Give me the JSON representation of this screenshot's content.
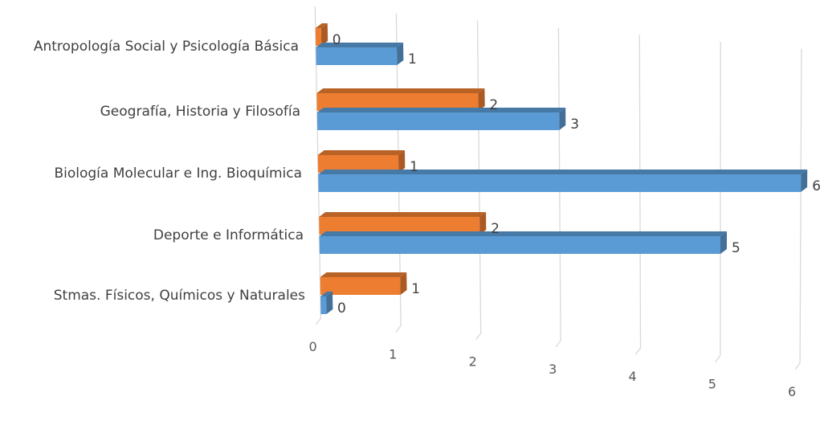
{
  "chart_data": {
    "type": "bar",
    "orientation": "horizontal",
    "style": "3d-perspective",
    "categories": [
      "Antropología Social y Psicología Básica",
      "Geografía, Historia y Filosofía",
      "Biología Molecular e Ing. Bioquímica",
      "Deporte e Informática",
      "Stmas. Físicos, Químicos y Naturales"
    ],
    "series": [
      {
        "color": "#ED7D31",
        "values": [
          0,
          2,
          1,
          2,
          1
        ]
      },
      {
        "color": "#5B9BD5",
        "values": [
          1,
          3,
          6,
          5,
          0
        ]
      }
    ],
    "x_ticks": [
      "0",
      "1",
      "2",
      "3",
      "4",
      "5",
      "6"
    ],
    "xlim": [
      0,
      6
    ],
    "grid": true,
    "legend": "none"
  }
}
